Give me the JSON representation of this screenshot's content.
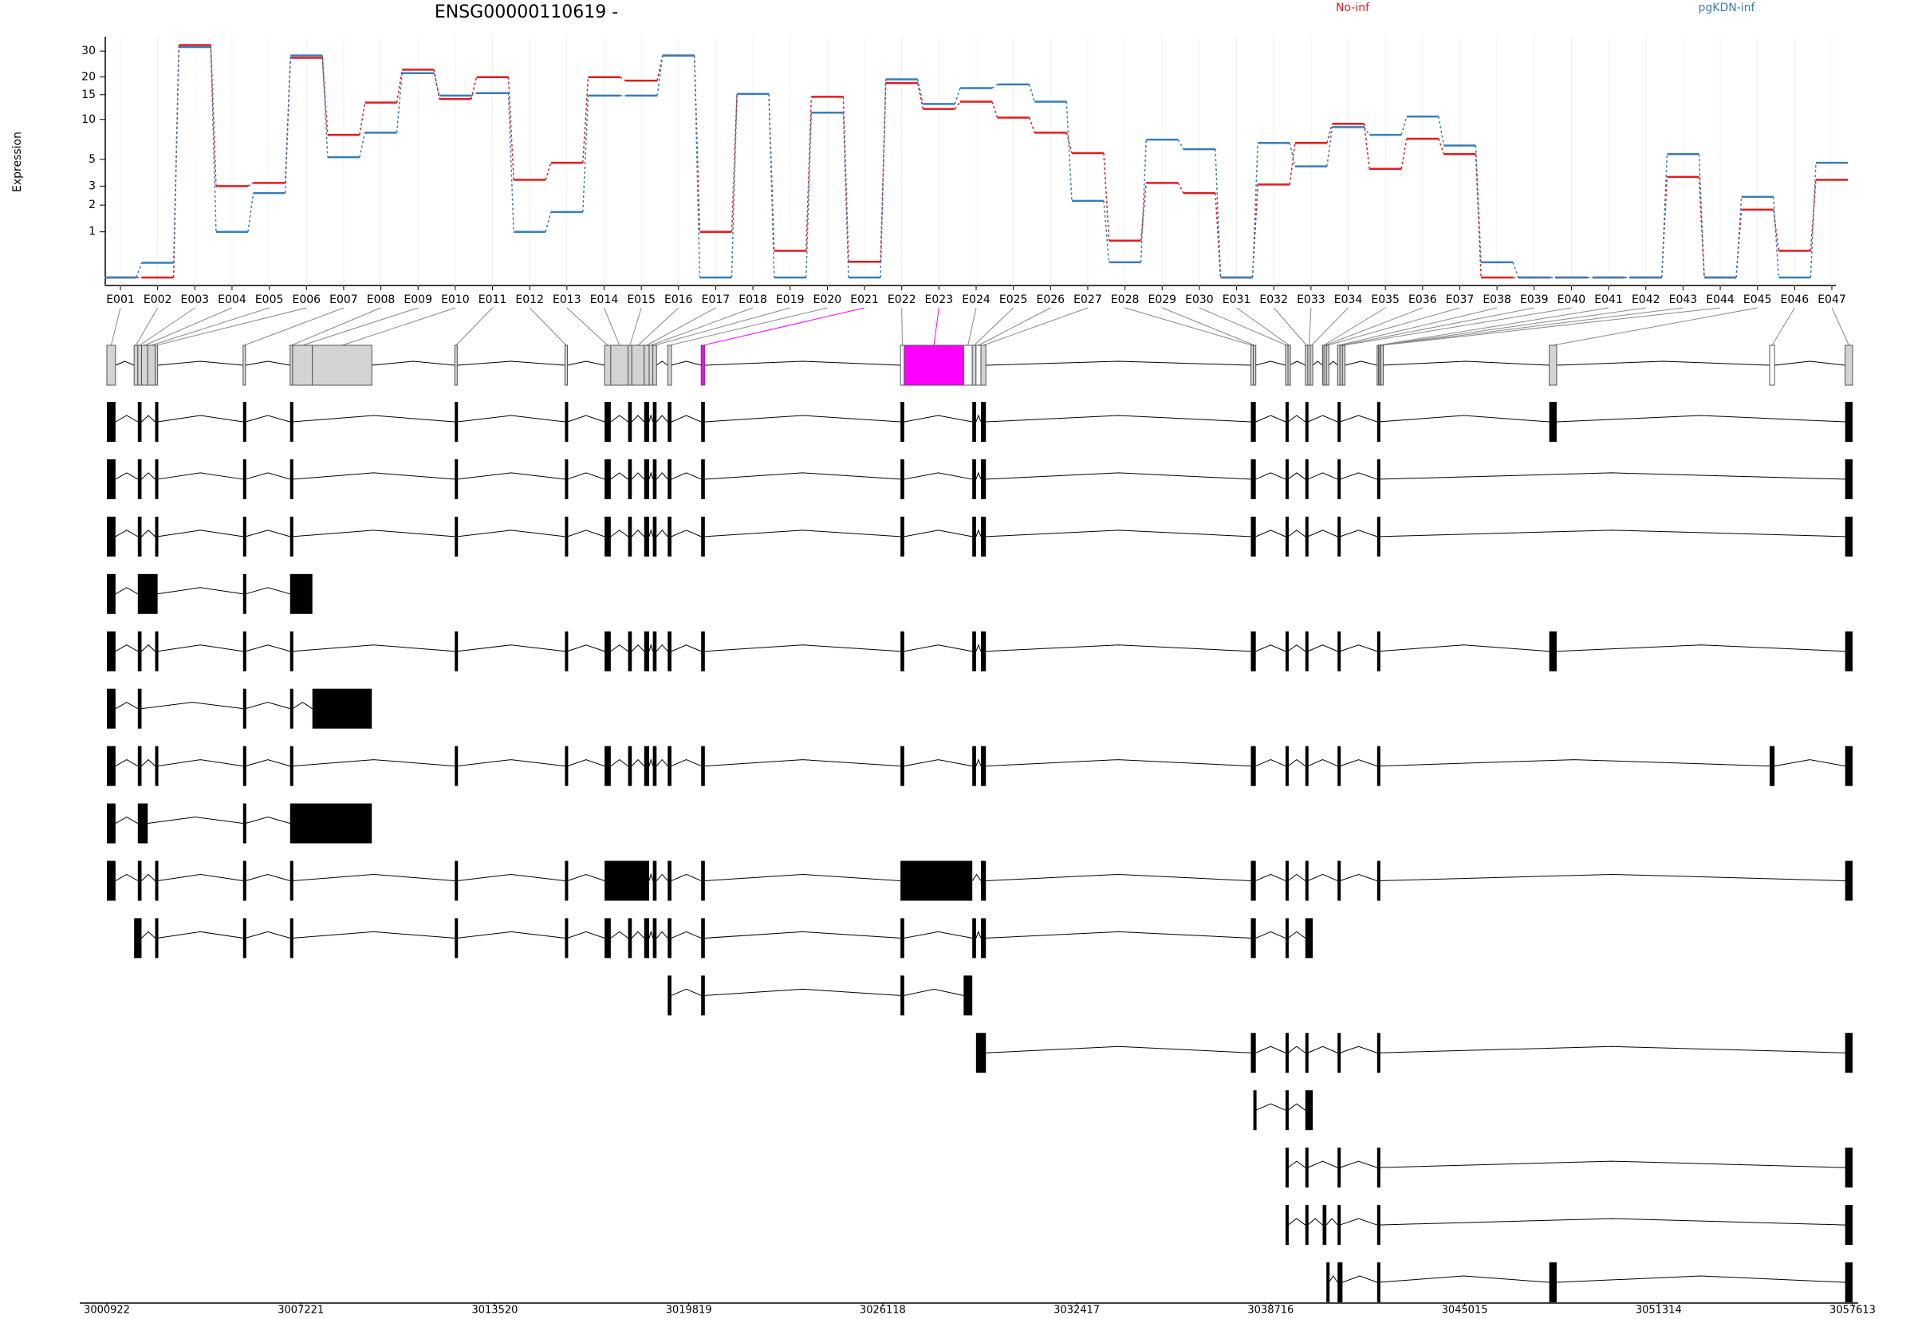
{
  "chart_data": {
    "type": "line",
    "title": "ENSG00000110619 -",
    "y_label": "Expression",
    "yscale": "log1p",
    "grid": true,
    "categories": [
      "E001",
      "E002",
      "E003",
      "E004",
      "E005",
      "E006",
      "E007",
      "E008",
      "E009",
      "E010",
      "E011",
      "E012",
      "E013",
      "E014",
      "E015",
      "E016",
      "E017",
      "E018",
      "E019",
      "E020",
      "E021",
      "E022",
      "E023",
      "E024",
      "E025",
      "E026",
      "E027",
      "E028",
      "E029",
      "E030",
      "E031",
      "E032",
      "E033",
      "E034",
      "E035",
      "E036",
      "E037",
      "E038",
      "E039",
      "E040",
      "E041",
      "E042",
      "E043",
      "E044",
      "E045",
      "E046",
      "E047"
    ],
    "series": [
      {
        "name": "No-inf",
        "color": "#e41a1c",
        "values": [
          0,
          0,
          33,
          3,
          3.2,
          27,
          7.7,
          13.2,
          22.4,
          14,
          19.9,
          3.4,
          4.7,
          19.9,
          18.8,
          28,
          1,
          15.2,
          0.5,
          14.5,
          0.27,
          18.1,
          11.9,
          13.4,
          10.3,
          8,
          5.6,
          0.75,
          3.2,
          2.6,
          0,
          3.1,
          6.7,
          9.3,
          4.2,
          7.2,
          5.5,
          0,
          0,
          0,
          0,
          0,
          3.6,
          0,
          1.8,
          0.5,
          3.4
        ]
      },
      {
        "name": "pgKDN-inf",
        "color": "#377eb8",
        "values": [
          0,
          0.25,
          32,
          1,
          2.6,
          28,
          5.2,
          8,
          21.2,
          14.8,
          15.4,
          1,
          1.7,
          14.8,
          14.8,
          28,
          0,
          15.2,
          0,
          11.2,
          0,
          19.2,
          12.9,
          16.7,
          17.7,
          13.4,
          2.2,
          0.26,
          7.1,
          6,
          0,
          6.7,
          4.4,
          8.8,
          7.7,
          10.5,
          6.4,
          0.26,
          0,
          0,
          0,
          0,
          5.5,
          0,
          2.4,
          0,
          4.7
        ]
      }
    ],
    "ylim": [
      0,
      40
    ],
    "yticks": [
      1,
      2,
      3,
      5,
      10,
      15,
      20,
      30
    ]
  },
  "genomic_axis": {
    "xlim": [
      3000922,
      3057613
    ],
    "xticks": [
      3000922,
      3007221,
      3013520,
      3019819,
      3026118,
      3032417,
      3038716,
      3045015,
      3051314,
      3057613
    ]
  },
  "gene_model": {
    "color": "#d3d3d3",
    "highlight_color": "#ff00ff",
    "highlighted": [
      "E021",
      "E023"
    ],
    "open": [
      "E022",
      "E024",
      "E026",
      "E046"
    ],
    "exons": [
      {
        "start": 3000922,
        "end": 3001203
      },
      {
        "start": 3001807,
        "end": 3001927
      },
      {
        "start": 3001927,
        "end": 3002048
      },
      {
        "start": 3002048,
        "end": 3002249
      },
      {
        "start": 3002249,
        "end": 3002490
      },
      {
        "start": 3002490,
        "end": 3002570
      },
      {
        "start": 3005345,
        "end": 3005425
      },
      {
        "start": 3006872,
        "end": 3006953
      },
      {
        "start": 3006953,
        "end": 3007596
      },
      {
        "start": 3007596,
        "end": 3009526
      },
      {
        "start": 3012220,
        "end": 3012300
      },
      {
        "start": 3015798,
        "end": 3015879
      },
      {
        "start": 3017085,
        "end": 3017286
      },
      {
        "start": 3017286,
        "end": 3017849
      },
      {
        "start": 3017849,
        "end": 3017969
      },
      {
        "start": 3017969,
        "end": 3018371
      },
      {
        "start": 3018371,
        "end": 3018532
      },
      {
        "start": 3018532,
        "end": 3018653
      },
      {
        "start": 3018653,
        "end": 3018773
      },
      {
        "start": 3019135,
        "end": 3019256
      },
      {
        "start": 3020221,
        "end": 3020341
      },
      {
        "start": 3026694,
        "end": 3026815
      },
      {
        "start": 3026815,
        "end": 3028745
      },
      {
        "start": 3028745,
        "end": 3029026
      },
      {
        "start": 3029026,
        "end": 3029147
      },
      {
        "start": 3029147,
        "end": 3029307
      },
      {
        "start": 3029307,
        "end": 3029468
      },
      {
        "start": 3038072,
        "end": 3038153
      },
      {
        "start": 3038153,
        "end": 3038233
      },
      {
        "start": 3039198,
        "end": 3039279
      },
      {
        "start": 3039279,
        "end": 3039319
      },
      {
        "start": 3039841,
        "end": 3039922
      },
      {
        "start": 3039922,
        "end": 3040002
      },
      {
        "start": 3040002,
        "end": 3040083
      },
      {
        "start": 3040404,
        "end": 3040445
      },
      {
        "start": 3040445,
        "end": 3040525
      },
      {
        "start": 3040525,
        "end": 3040605
      },
      {
        "start": 3040887,
        "end": 3040967
      },
      {
        "start": 3040967,
        "end": 3041048
      },
      {
        "start": 3041048,
        "end": 3041128
      },
      {
        "start": 3042173,
        "end": 3042214
      },
      {
        "start": 3042214,
        "end": 3042254
      },
      {
        "start": 3042254,
        "end": 3042294
      },
      {
        "start": 3042294,
        "end": 3042334
      },
      {
        "start": 3047762,
        "end": 3048003
      },
      {
        "start": 3054919,
        "end": 3055079
      },
      {
        "start": 3057371,
        "end": 3057613
      }
    ],
    "transcripts": [
      [
        [
          "E001"
        ],
        [
          "E003"
        ],
        [
          "E006"
        ],
        [
          "E007"
        ],
        [
          "E008"
        ],
        [
          "E011"
        ],
        [
          "E012"
        ],
        [
          "E013"
        ],
        [
          "E015"
        ],
        [
          "E017"
        ],
        [
          "E019"
        ],
        [
          "E020"
        ],
        [
          "E021"
        ],
        [
          "E022"
        ],
        [
          "E025"
        ],
        [
          "E027"
        ],
        [
          "E028",
          "E029"
        ],
        [
          "E030"
        ],
        [
          "E032"
        ],
        [
          "E038"
        ],
        [
          "E041"
        ],
        [
          "E045"
        ],
        [
          "E047"
        ]
      ],
      [
        [
          "E001"
        ],
        [
          "E003"
        ],
        [
          "E006"
        ],
        [
          "E007"
        ],
        [
          "E008"
        ],
        [
          "E011"
        ],
        [
          "E012"
        ],
        [
          "E013"
        ],
        [
          "E015"
        ],
        [
          "E017"
        ],
        [
          "E019"
        ],
        [
          "E020"
        ],
        [
          "E021"
        ],
        [
          "E022"
        ],
        [
          "E025"
        ],
        [
          "E027"
        ],
        [
          "E028",
          "E029"
        ],
        [
          "E030"
        ],
        [
          "E032"
        ],
        [
          "E038"
        ],
        [
          "E041"
        ],
        [
          "E047"
        ]
      ],
      [
        [
          "E001"
        ],
        [
          "E003"
        ],
        [
          "E006"
        ],
        [
          "E007"
        ],
        [
          "E008"
        ],
        [
          "E011"
        ],
        [
          "E012"
        ],
        [
          "E013"
        ],
        [
          "E015"
        ],
        [
          "E017"
        ],
        [
          "E019"
        ],
        [
          "E020"
        ],
        [
          "E021"
        ],
        [
          "E022"
        ],
        [
          "E025"
        ],
        [
          "E027"
        ],
        [
          "E028",
          "E029"
        ],
        [
          "E030"
        ],
        [
          "E032"
        ],
        [
          "E038"
        ],
        [
          "E041"
        ],
        [
          "E047"
        ]
      ],
      [
        [
          "E001"
        ],
        [
          "E003",
          "E006"
        ],
        [
          "E007"
        ],
        [
          "E008",
          "E009"
        ]
      ],
      [
        [
          "E001"
        ],
        [
          "E003"
        ],
        [
          "E006"
        ],
        [
          "E007"
        ],
        [
          "E008"
        ],
        [
          "E011"
        ],
        [
          "E012"
        ],
        [
          "E013"
        ],
        [
          "E015"
        ],
        [
          "E017"
        ],
        [
          "E019"
        ],
        [
          "E020"
        ],
        [
          "E021"
        ],
        [
          "E022"
        ],
        [
          "E025"
        ],
        [
          "E027"
        ],
        [
          "E028",
          "E029"
        ],
        [
          "E030"
        ],
        [
          "E032"
        ],
        [
          "E038"
        ],
        [
          "E041"
        ],
        [
          "E045"
        ],
        [
          "E047"
        ]
      ],
      [
        [
          "E001"
        ],
        [
          "E003"
        ],
        [
          "E007"
        ],
        [
          "E008"
        ],
        [
          "E010"
        ]
      ],
      [
        [
          "E001"
        ],
        [
          "E003"
        ],
        [
          "E006"
        ],
        [
          "E007"
        ],
        [
          "E008"
        ],
        [
          "E011"
        ],
        [
          "E012"
        ],
        [
          "E013"
        ],
        [
          "E015"
        ],
        [
          "E017"
        ],
        [
          "E019"
        ],
        [
          "E020"
        ],
        [
          "E021"
        ],
        [
          "E022"
        ],
        [
          "E025"
        ],
        [
          "E027"
        ],
        [
          "E028",
          "E029"
        ],
        [
          "E030"
        ],
        [
          "E032"
        ],
        [
          "E038"
        ],
        [
          "E041"
        ],
        [
          "E046"
        ],
        [
          "E047"
        ]
      ],
      [
        [
          "E001"
        ],
        [
          "E003",
          "E004"
        ],
        [
          "E007"
        ],
        [
          "E008",
          "E010"
        ]
      ],
      [
        [
          "E001"
        ],
        [
          "E003"
        ],
        [
          "E006"
        ],
        [
          "E007"
        ],
        [
          "E008"
        ],
        [
          "E011"
        ],
        [
          "E012"
        ],
        [
          "E013",
          "E017"
        ],
        [
          "E019"
        ],
        [
          "E020"
        ],
        [
          "E021"
        ],
        [
          "E022",
          "E024"
        ],
        [
          "E027"
        ],
        [
          "E028",
          "E029"
        ],
        [
          "E030"
        ],
        [
          "E032"
        ],
        [
          "E038"
        ],
        [
          "E041"
        ],
        [
          "E047"
        ]
      ],
      [
        [
          "E002",
          "E003"
        ],
        [
          "E006"
        ],
        [
          "E007"
        ],
        [
          "E008"
        ],
        [
          "E011"
        ],
        [
          "E012"
        ],
        [
          "E013"
        ],
        [
          "E015"
        ],
        [
          "E017"
        ],
        [
          "E019"
        ],
        [
          "E020"
        ],
        [
          "E021"
        ],
        [
          "E022"
        ],
        [
          "E025"
        ],
        [
          "E027"
        ],
        [
          "E028",
          "E029"
        ],
        [
          "E030"
        ],
        [
          "E032",
          "E034"
        ]
      ],
      [
        [
          "E020"
        ],
        [
          "E021"
        ],
        [
          "E022"
        ],
        [
          "E024"
        ]
      ],
      [
        [
          "E026",
          "E027"
        ],
        [
          "E028",
          "E029"
        ],
        [
          "E030"
        ],
        [
          "E032"
        ],
        [
          "E038"
        ],
        [
          "E041"
        ],
        [
          "E047"
        ]
      ],
      [
        [
          "E029"
        ],
        [
          "E030"
        ],
        [
          "E032",
          "E034"
        ]
      ],
      [
        [
          "E030"
        ],
        [
          "E032"
        ],
        [
          "E038"
        ],
        [
          "E041"
        ],
        [
          "E047"
        ]
      ],
      [
        [
          "E030"
        ],
        [
          "E032"
        ],
        [
          "E035",
          "E036"
        ],
        [
          "E038"
        ],
        [
          "E041"
        ],
        [
          "E047"
        ]
      ],
      [
        [
          "E037"
        ],
        [
          "E038",
          "E039"
        ],
        [
          "E041"
        ],
        [
          "E045"
        ],
        [
          "E047"
        ]
      ]
    ]
  }
}
